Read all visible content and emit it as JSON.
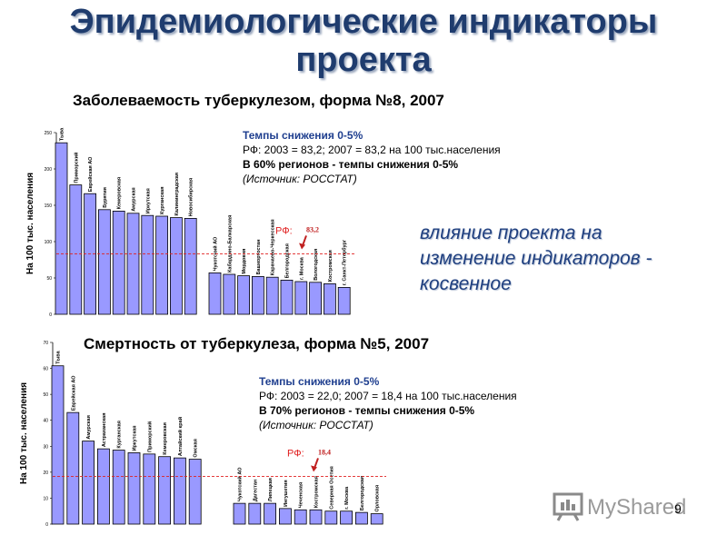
{
  "title": {
    "line1": "Эпидемиологические индикаторы",
    "line2": "проекта"
  },
  "side_note": {
    "line1": "влияние проекта на",
    "line2": "изменение индикаторов -",
    "line3": "косвенное"
  },
  "chart_data": [
    {
      "type": "bar",
      "title": "Заболеваемость туберкулезом, форма №8, 2007",
      "ylabel": "На 100 тыс. населения",
      "ylim": [
        0,
        250
      ],
      "yticks": [
        "0",
        "50",
        "100",
        "150",
        "200",
        "250"
      ],
      "reference_label": "РФ:",
      "reference_value": 83.2,
      "reference_value_label": "83,2",
      "groups": [
        {
          "categories": [
            "Тыва",
            "Приморский",
            "Еврейская АО",
            "Бурятия",
            "Кемеровская",
            "Амурская",
            "Иркутская",
            "Курганская",
            "Калининградская",
            "Новосибирская"
          ],
          "values": [
            236,
            178,
            166,
            144,
            142,
            139,
            136,
            135,
            133,
            132
          ]
        },
        {
          "categories": [
            "Чукотский АО",
            "Кабардино-Балкарская",
            "Мордовия",
            "Башкортостан",
            "Карачаево-Черкесская",
            "Белгородская",
            "г. Москва",
            "Вологодская",
            "Костромская",
            "г. Санкт-Петербург"
          ],
          "values": [
            57,
            55,
            53,
            52,
            51,
            47,
            45,
            44,
            42,
            37
          ]
        }
      ],
      "info": {
        "line1": "Темпы снижения 0-5%",
        "line2": "РФ: 2003 = 83,2;  2007 = 83,2 на 100 тыс.населения",
        "line3": "В 60% регионов - темпы снижения 0-5%",
        "line4": "(Источник: РОССТАТ)"
      }
    },
    {
      "type": "bar",
      "title": "Смертность от туберкулеза, форма №5, 2007",
      "ylabel": "На 100 тыс. населения",
      "ylim": [
        0,
        70
      ],
      "yticks": [
        "0",
        "10",
        "20",
        "30",
        "40",
        "50",
        "60",
        "70"
      ],
      "reference_label": "РФ:",
      "reference_value": 18.4,
      "reference_value_label": "18,4",
      "groups": [
        {
          "categories": [
            "Тыва",
            "Еврейская АО",
            "Амурская",
            "Астраханская",
            "Курганская",
            "Иркутская",
            "Приморский",
            "Кемеровская",
            "Алтайский край",
            "Омская"
          ],
          "values": [
            61,
            43,
            32,
            29,
            28.5,
            27.5,
            27,
            26,
            25.5,
            25
          ]
        },
        {
          "categories": [
            "Чукотский АО",
            "Дагестан",
            "Липецкая",
            "Ингушетия",
            "Чеченская",
            "Костромская",
            "Северная Осетия",
            "г. Москва",
            "Белгородская",
            "Орловская"
          ],
          "values": [
            8,
            8,
            8,
            6,
            5.5,
            5.5,
            5,
            5,
            4.5,
            4
          ]
        }
      ],
      "info": {
        "line1": "Темпы снижения 0-5%",
        "line2": "РФ: 2003 = 22,0;  2007 = 18,4 на 100 тыс.населения",
        "line3": "В 70% регионов - темпы снижения 0-5%",
        "line4": "(Источник: РОССТАТ)"
      }
    }
  ],
  "footer": {
    "logo_text": "MyShared",
    "page_number": "9"
  },
  "colors": {
    "title": "#1f3c6e",
    "bar_fill": "#9999ff",
    "reference_line": "#e02020",
    "side_note": "#1f3f7f"
  }
}
